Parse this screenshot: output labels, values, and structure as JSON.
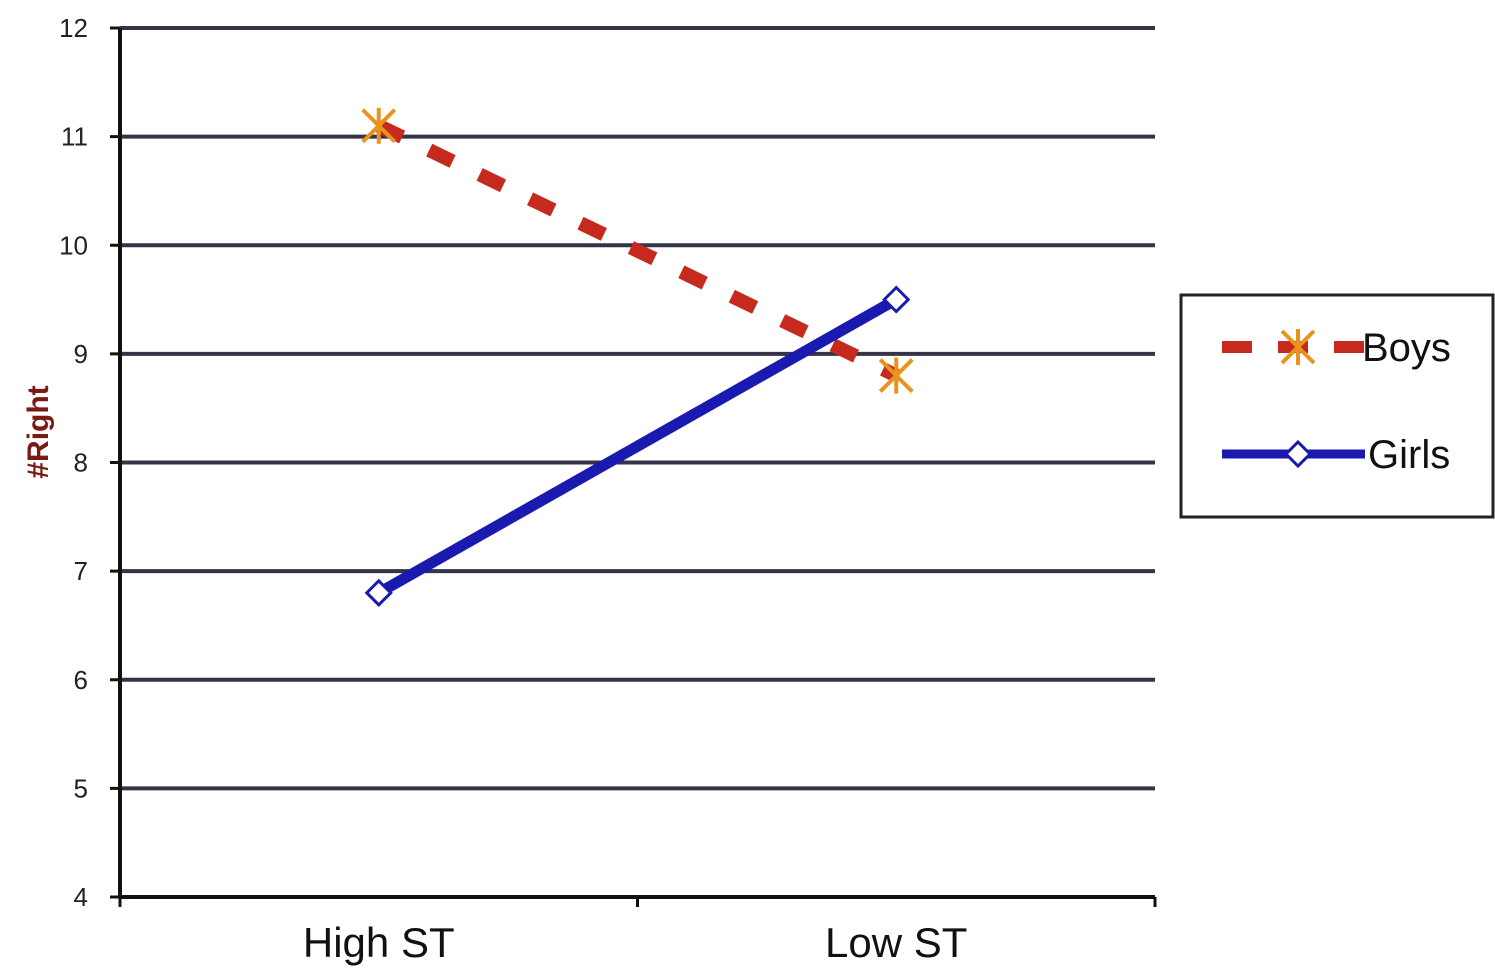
{
  "chart_data": {
    "type": "line",
    "categories": [
      "High ST",
      "Low ST"
    ],
    "series": [
      {
        "name": "Boys",
        "values": [
          11.1,
          8.8
        ],
        "color": "#c62a1e",
        "marker_color": "#e8941c",
        "line_style": "dashed",
        "marker": "x-star"
      },
      {
        "name": "Girls",
        "values": [
          6.8,
          9.5
        ],
        "color": "#1a1ab0",
        "line_style": "solid",
        "marker": "diamond"
      }
    ],
    "ylabel": "#Right",
    "xlabel": "",
    "ylim": [
      4,
      12
    ],
    "yticks": [
      4,
      5,
      6,
      7,
      8,
      9,
      10,
      11,
      12
    ],
    "grid": true,
    "legend_position": "right"
  }
}
